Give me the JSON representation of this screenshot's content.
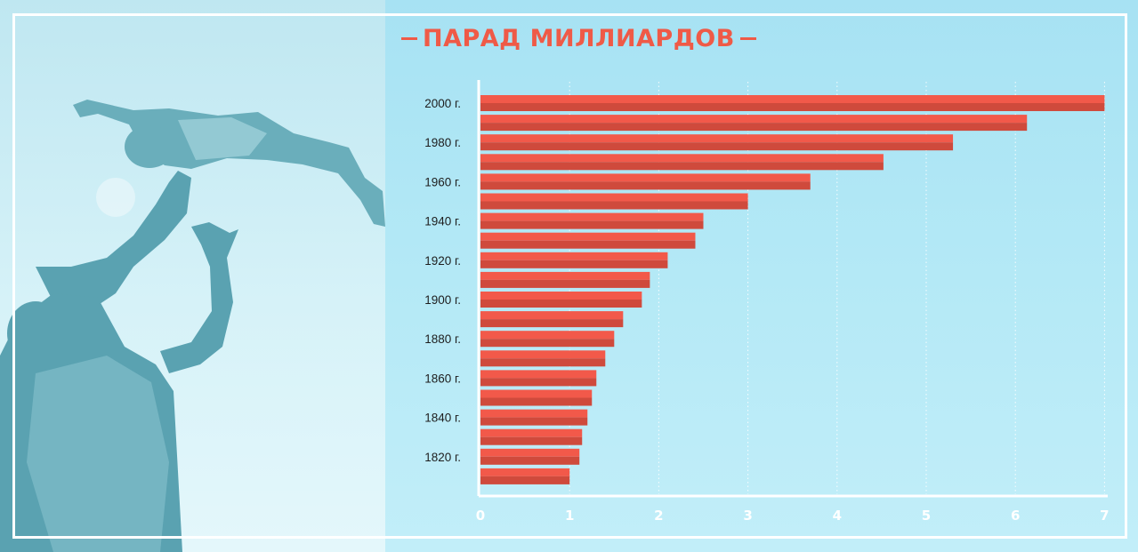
{
  "chart_data": {
    "type": "bar",
    "orientation": "horizontal",
    "title": "ПАРАД МИЛЛИАРДОВ",
    "y_tick_labels": [
      "2000 г.",
      "1980 г.",
      "1960 г.",
      "1940 г.",
      "1920 г.",
      "1900 г.",
      "1880 г.",
      "1860 г.",
      "1840 г.",
      "1820 г."
    ],
    "x_tick_labels": [
      "0",
      "1",
      "2",
      "3",
      "4",
      "5",
      "6",
      "7"
    ],
    "xlim": [
      0,
      7
    ],
    "grid": "vertical dotted",
    "bars": [
      {
        "label": "2000 г.",
        "value": 7.0
      },
      {
        "label": "",
        "value": 6.13
      },
      {
        "label": "1980 г.",
        "value": 5.3
      },
      {
        "label": "",
        "value": 4.52
      },
      {
        "label": "1960 г.",
        "value": 3.7
      },
      {
        "label": "",
        "value": 3.0
      },
      {
        "label": "1940 г.",
        "value": 2.5
      },
      {
        "label": "",
        "value": 2.41
      },
      {
        "label": "1920 г.",
        "value": 2.1
      },
      {
        "label": "",
        "value": 1.9
      },
      {
        "label": "1900 г.",
        "value": 1.81
      },
      {
        "label": "",
        "value": 1.6
      },
      {
        "label": "1880 г.",
        "value": 1.5
      },
      {
        "label": "",
        "value": 1.4
      },
      {
        "label": "1860 г.",
        "value": 1.3
      },
      {
        "label": "",
        "value": 1.25
      },
      {
        "label": "1840 г.",
        "value": 1.2
      },
      {
        "label": "",
        "value": 1.14
      },
      {
        "label": "1820 г.",
        "value": 1.11
      },
      {
        "label": "",
        "value": 1.0
      }
    ]
  },
  "colors": {
    "bar_top": "#f2594a",
    "bar_bottom": "#cf4a3c",
    "title": "#ef5a47",
    "axis": "#ffffff",
    "background": "#a9e4f4"
  },
  "photo": {
    "subject": "parent tossing child into sky"
  }
}
